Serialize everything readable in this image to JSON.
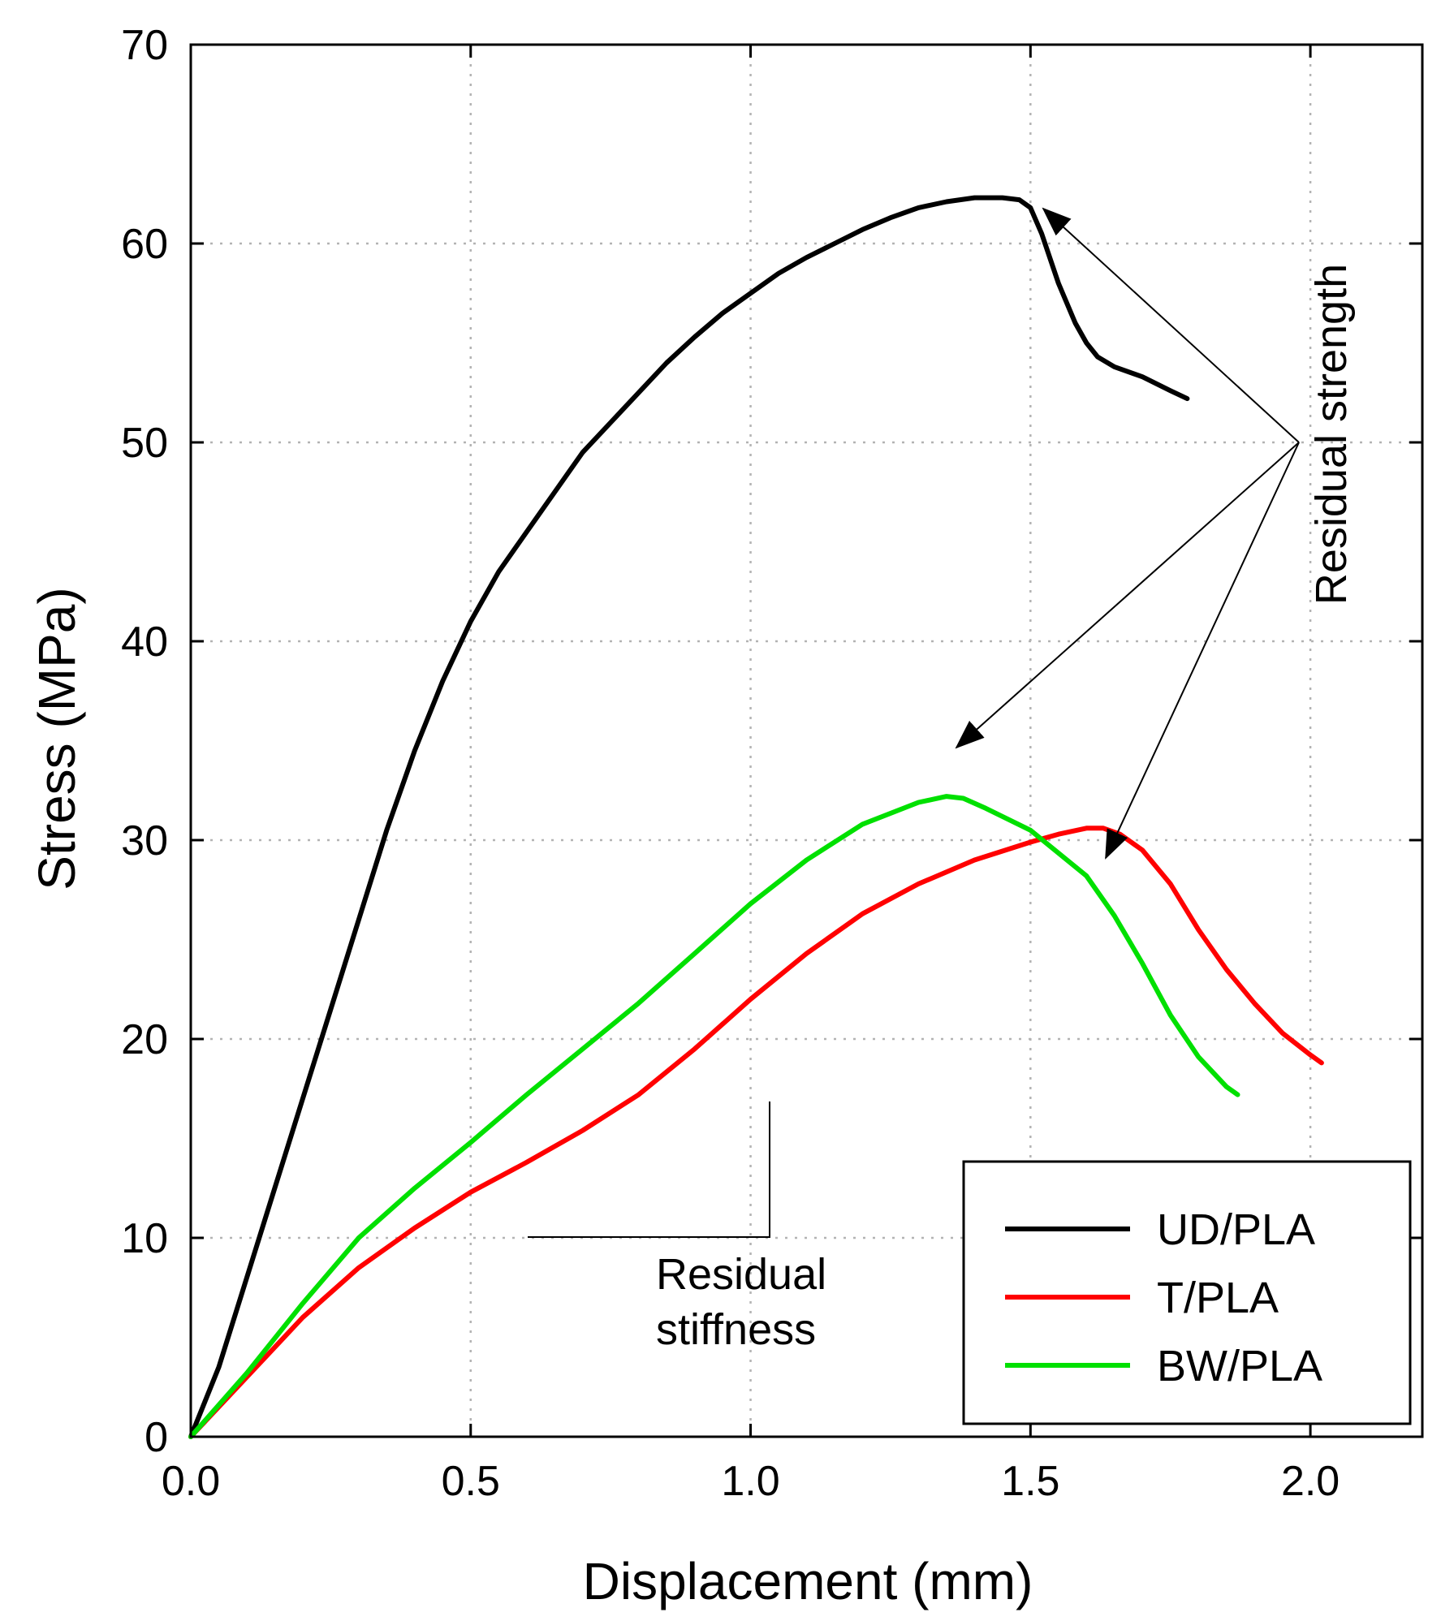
{
  "chart_data": {
    "type": "line",
    "title": "",
    "xlabel": "Displacement (mm)",
    "ylabel": "Stress (MPa)",
    "xlim": [
      0,
      2.2
    ],
    "ylim": [
      0,
      70
    ],
    "grid": true,
    "legend_position": "bottom-right",
    "x_ticks": [
      0.0,
      0.5,
      1.0,
      1.5,
      2.0
    ],
    "x_tick_labels": [
      "0.0",
      "0.5",
      "1.0",
      "1.5",
      "2.0"
    ],
    "y_ticks": [
      0,
      10,
      20,
      30,
      40,
      50,
      60,
      70
    ],
    "y_tick_labels": [
      "0",
      "10",
      "20",
      "30",
      "40",
      "50",
      "60",
      "70"
    ],
    "series": [
      {
        "name": "UD/PLA",
        "color": "#000000",
        "x": [
          0,
          0.05,
          0.1,
          0.15,
          0.2,
          0.25,
          0.3,
          0.35,
          0.4,
          0.45,
          0.5,
          0.55,
          0.6,
          0.65,
          0.7,
          0.75,
          0.8,
          0.85,
          0.9,
          0.95,
          1.0,
          1.05,
          1.1,
          1.15,
          1.2,
          1.25,
          1.3,
          1.35,
          1.4,
          1.45,
          1.48,
          1.5,
          1.52,
          1.55,
          1.58,
          1.6,
          1.62,
          1.65,
          1.7,
          1.75,
          1.78
        ],
        "y": [
          0,
          3.5,
          8,
          12.5,
          17,
          21.5,
          26,
          30.5,
          34.5,
          38,
          41,
          43.5,
          45.5,
          47.5,
          49.5,
          51,
          52.5,
          54,
          55.3,
          56.5,
          57.5,
          58.5,
          59.3,
          60,
          60.7,
          61.3,
          61.8,
          62.1,
          62.3,
          62.3,
          62.2,
          61.8,
          60.5,
          58,
          56,
          55,
          54.3,
          53.8,
          53.3,
          52.6,
          52.2
        ]
      },
      {
        "name": "T/PLA",
        "color": "#ff0000",
        "x": [
          0,
          0.1,
          0.2,
          0.3,
          0.4,
          0.5,
          0.6,
          0.7,
          0.8,
          0.9,
          1.0,
          1.1,
          1.2,
          1.3,
          1.4,
          1.5,
          1.55,
          1.6,
          1.63,
          1.66,
          1.7,
          1.75,
          1.8,
          1.85,
          1.9,
          1.95,
          2.0,
          2.02
        ],
        "y": [
          0,
          3,
          6,
          8.5,
          10.5,
          12.3,
          13.8,
          15.4,
          17.2,
          19.5,
          22,
          24.3,
          26.3,
          27.8,
          29,
          29.9,
          30.3,
          30.6,
          30.6,
          30.3,
          29.5,
          27.8,
          25.5,
          23.5,
          21.8,
          20.3,
          19.2,
          18.8
        ]
      },
      {
        "name": "BW/PLA",
        "color": "#00e000",
        "x": [
          0,
          0.1,
          0.2,
          0.3,
          0.4,
          0.5,
          0.6,
          0.7,
          0.8,
          0.9,
          1.0,
          1.1,
          1.2,
          1.3,
          1.35,
          1.38,
          1.42,
          1.5,
          1.6,
          1.65,
          1.7,
          1.75,
          1.8,
          1.85,
          1.87
        ],
        "y": [
          0,
          3.2,
          6.7,
          10,
          12.5,
          14.8,
          17.2,
          19.5,
          21.8,
          24.3,
          26.8,
          29,
          30.8,
          31.9,
          32.2,
          32.1,
          31.6,
          30.5,
          28.2,
          26.2,
          23.8,
          21.2,
          19.1,
          17.6,
          17.2
        ]
      }
    ],
    "annotations": [
      {
        "text": "Residual strength",
        "orientation": "vertical"
      },
      {
        "text_lines": [
          "Residual",
          "stiffness"
        ]
      }
    ]
  }
}
